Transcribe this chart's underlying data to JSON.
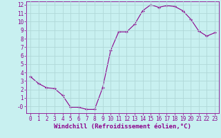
{
  "x": [
    0,
    1,
    2,
    3,
    4,
    5,
    6,
    7,
    8,
    9,
    10,
    11,
    12,
    13,
    14,
    15,
    16,
    17,
    18,
    19,
    20,
    21,
    22,
    23
  ],
  "y": [
    3.5,
    2.7,
    2.2,
    2.1,
    1.3,
    -0.1,
    -0.1,
    -0.35,
    -0.35,
    2.2,
    6.6,
    8.8,
    8.8,
    9.7,
    11.3,
    12.0,
    11.7,
    11.9,
    11.8,
    11.3,
    10.3,
    8.9,
    8.3,
    8.7
  ],
  "line_color": "#8B008B",
  "marker": "+",
  "marker_color": "#8B008B",
  "bg_color": "#C8F0F0",
  "grid_color": "#B0D8D8",
  "xlabel": "Windchill (Refroidissement éolien,°C)",
  "xlabel_color": "#8B008B",
  "ylim": [
    -0.8,
    12.4
  ],
  "xlim": [
    -0.5,
    23.5
  ],
  "yticks": [
    0,
    1,
    2,
    3,
    4,
    5,
    6,
    7,
    8,
    9,
    10,
    11,
    12
  ],
  "ytick_labels": [
    "-0",
    "1",
    "2",
    "3",
    "4",
    "5",
    "6",
    "7",
    "8",
    "9",
    "10",
    "11",
    "12"
  ],
  "xticks": [
    0,
    1,
    2,
    3,
    4,
    5,
    6,
    7,
    8,
    9,
    10,
    11,
    12,
    13,
    14,
    15,
    16,
    17,
    18,
    19,
    20,
    21,
    22,
    23
  ],
  "tick_color": "#8B008B",
  "tick_label_color": "#8B008B",
  "tick_fontsize": 5.5,
  "xlabel_fontsize": 6.5,
  "marker_size": 3.5,
  "line_width": 0.8
}
